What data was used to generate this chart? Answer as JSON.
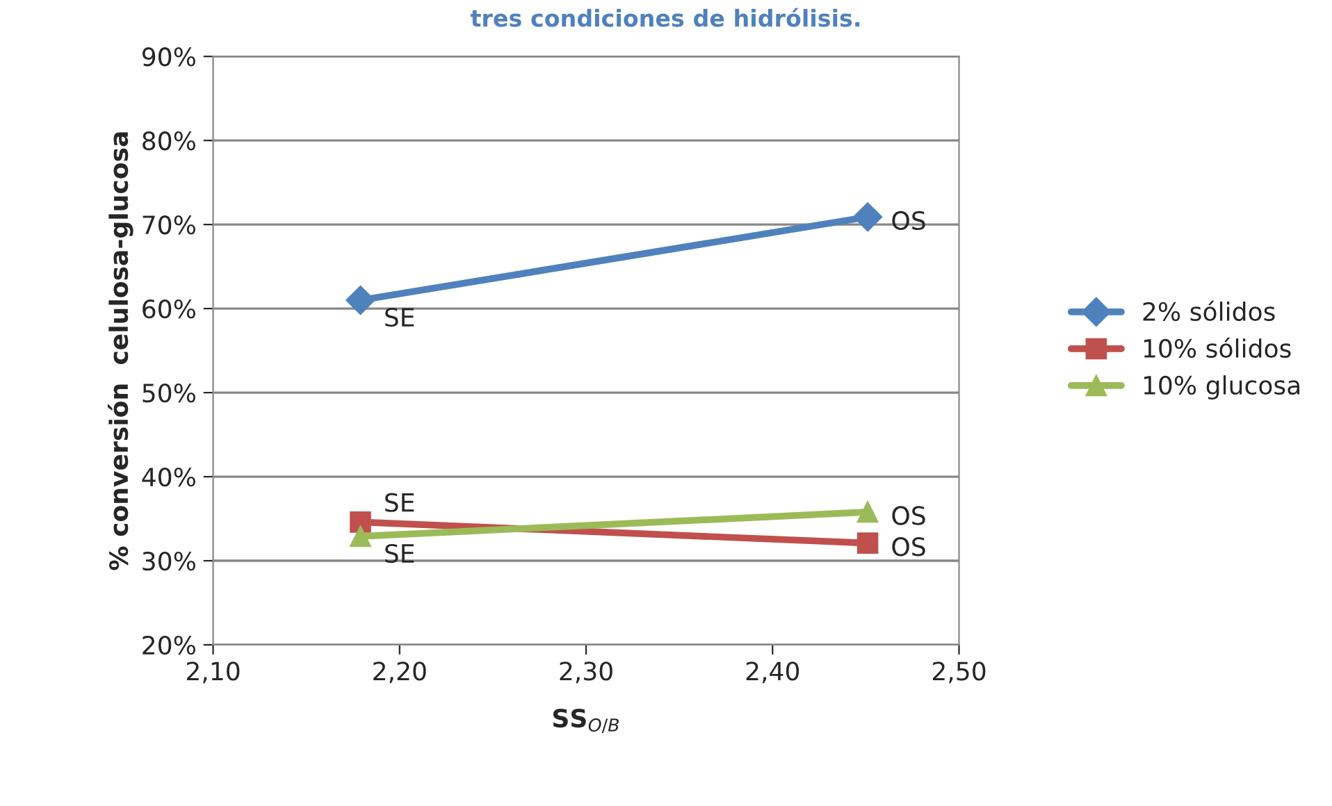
{
  "chart_data": {
    "type": "line",
    "title": "tres condiciones de hidrólisis.",
    "xlabel": "SS$_{O/B}$",
    "ylabel": "% conversión  celulosa-glucosa",
    "x": [
      2.179,
      2.451
    ],
    "series": [
      {
        "name": "2% sólidos",
        "color": "#4f81bd",
        "marker": "diamond",
        "values": [
          61.0,
          70.9
        ],
        "value_labels": [
          "SE",
          "OS"
        ]
      },
      {
        "name": "10% sólidos",
        "color": "#c0504d",
        "marker": "square",
        "values": [
          34.6,
          32.1
        ],
        "value_labels": [
          "SE",
          "OS"
        ]
      },
      {
        "name": "10% glucosa",
        "color": "#9bbb59",
        "marker": "triangle",
        "values": [
          32.9,
          35.8
        ],
        "value_labels": [
          "SE",
          "OS"
        ]
      }
    ],
    "xlim": [
      2.1,
      2.5
    ],
    "xticks": [
      {
        "value": 2.1,
        "label": "2,10"
      },
      {
        "value": 2.2,
        "label": "2,20"
      },
      {
        "value": 2.3,
        "label": "2,30"
      },
      {
        "value": 2.4,
        "label": "2,40"
      },
      {
        "value": 2.5,
        "label": "2,50"
      }
    ],
    "ylim": [
      20,
      90
    ],
    "yticks": [
      {
        "value": 20,
        "label": "20%"
      },
      {
        "value": 30,
        "label": "30%"
      },
      {
        "value": 40,
        "label": "40%"
      },
      {
        "value": 50,
        "label": "50%"
      },
      {
        "value": 60,
        "label": "60%"
      },
      {
        "value": 70,
        "label": "70%"
      },
      {
        "value": 80,
        "label": "80%"
      },
      {
        "value": 90,
        "label": "90%"
      }
    ],
    "grid": "y",
    "legend": "right",
    "line_style": "solid"
  }
}
